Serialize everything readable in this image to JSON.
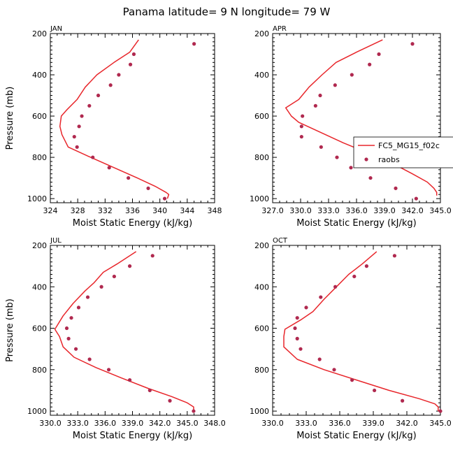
{
  "figure": {
    "title": "Panama  latitude= 9 N longitude= 79 W"
  },
  "colors": {
    "model_line": "#e8262b",
    "obs_marker": "#b0294f",
    "axis": "#000000"
  },
  "legend": {
    "entries": [
      "FC5_MG15_f02c",
      "raobs"
    ],
    "placement": "right, on APR panel"
  },
  "chart_data": [
    {
      "panel": "JAN",
      "type": "line+scatter",
      "title": "JAN",
      "xlabel": "Moist Static Energy (kJ/kg)",
      "ylabel": "Pressure (mb)",
      "xlim": [
        324,
        348
      ],
      "ylim": [
        1020,
        200
      ],
      "y_inverted": true,
      "xticks": [
        324,
        328,
        332,
        336,
        340,
        344,
        348
      ],
      "xtick_labels": [
        "324",
        "328",
        "332",
        "336",
        "340",
        "344",
        "348"
      ],
      "yticks": [
        200,
        400,
        600,
        800,
        1000
      ],
      "ytick_labels": [
        "200",
        "400",
        "600",
        "800",
        "1000"
      ],
      "series": [
        {
          "name": "FC5_MG15_f02c",
          "style": "line",
          "x": [
            336.9,
            335.6,
            333.3,
            330.8,
            329.1,
            327.9,
            326.4,
            325.6,
            325.4,
            325.7,
            326.6,
            329.9,
            333.3,
            336.7,
            339.3,
            340.9,
            341.3,
            341.1
          ],
          "y": [
            230,
            290,
            340,
            400,
            460,
            520,
            570,
            600,
            650,
            690,
            750,
            800,
            850,
            900,
            940,
            970,
            980,
            1000
          ]
        },
        {
          "name": "raobs",
          "style": "marker",
          "x": [
            345.0,
            336.2,
            335.7,
            334.0,
            332.8,
            331.0,
            329.7,
            328.6,
            328.2,
            327.5,
            327.9,
            330.2,
            332.6,
            335.4,
            338.3,
            340.7
          ],
          "y": [
            250,
            300,
            350,
            400,
            450,
            500,
            550,
            600,
            650,
            700,
            750,
            800,
            850,
            900,
            950,
            1000
          ]
        }
      ]
    },
    {
      "panel": "APR",
      "type": "line+scatter",
      "title": "APR",
      "xlabel": "Moist Static Energy (kJ/kg)",
      "ylabel": "Pressure (mb)",
      "xlim": [
        327,
        345
      ],
      "ylim": [
        1020,
        200
      ],
      "y_inverted": true,
      "xticks": [
        327,
        330,
        333,
        336,
        339,
        342,
        345
      ],
      "xtick_labels": [
        "327.0",
        "330.0",
        "333.0",
        "336.0",
        "339.0",
        "342.0",
        "345.0"
      ],
      "yticks": [
        200,
        400,
        600,
        800,
        1000
      ],
      "ytick_labels": [
        "200",
        "400",
        "600",
        "800",
        "1000"
      ],
      "series": [
        {
          "name": "FC5_MG15_f02c",
          "style": "line",
          "x": [
            338.8,
            336.0,
            333.8,
            332.3,
            330.9,
            329.8,
            328.4,
            329.0,
            329.8,
            332.2,
            334.6,
            337.3,
            339.9,
            342.0,
            343.6,
            344.3,
            344.6,
            344.6
          ],
          "y": [
            230,
            290,
            340,
            400,
            460,
            520,
            560,
            600,
            630,
            680,
            730,
            780,
            830,
            880,
            920,
            950,
            970,
            985
          ]
        },
        {
          "name": "raobs",
          "style": "marker",
          "x": [
            342.0,
            338.4,
            337.4,
            335.5,
            333.7,
            332.1,
            331.6,
            330.2,
            330.1,
            330.1,
            332.2,
            333.9,
            335.4,
            337.5,
            340.2,
            342.4
          ],
          "y": [
            250,
            300,
            350,
            400,
            450,
            500,
            550,
            600,
            650,
            700,
            750,
            800,
            850,
            900,
            950,
            1000
          ]
        }
      ]
    },
    {
      "panel": "JUL",
      "type": "line+scatter",
      "title": "JUL",
      "xlabel": "Moist Static Energy (kJ/kg)",
      "ylabel": "Pressure (mb)",
      "xlim": [
        330,
        348
      ],
      "ylim": [
        1020,
        200
      ],
      "y_inverted": true,
      "xticks": [
        330,
        333,
        336,
        339,
        342,
        345,
        348
      ],
      "xtick_labels": [
        "330.0",
        "333.0",
        "336.0",
        "339.0",
        "342.0",
        "345.0",
        "348.0"
      ],
      "yticks": [
        200,
        400,
        600,
        800,
        1000
      ],
      "ytick_labels": [
        "200",
        "400",
        "600",
        "800",
        "1000"
      ],
      "series": [
        {
          "name": "FC5_MG15_f02c",
          "style": "line",
          "x": [
            339.4,
            337.3,
            335.8,
            334.8,
            333.8,
            332.5,
            331.4,
            330.5,
            331.0,
            331.4,
            332.6,
            335.0,
            337.8,
            340.7,
            343.3,
            345.0,
            345.7,
            345.7
          ],
          "y": [
            230,
            290,
            330,
            380,
            420,
            480,
            540,
            605,
            640,
            690,
            740,
            790,
            840,
            890,
            930,
            960,
            980,
            1000
          ]
        },
        {
          "name": "raobs",
          "style": "marker",
          "x": [
            341.2,
            338.7,
            337.0,
            335.6,
            334.1,
            333.1,
            332.3,
            331.8,
            332.0,
            332.8,
            334.3,
            336.4,
            338.7,
            340.9,
            343.1,
            345.7
          ],
          "y": [
            250,
            300,
            350,
            400,
            450,
            500,
            550,
            600,
            650,
            700,
            750,
            800,
            850,
            900,
            950,
            1000
          ]
        }
      ]
    },
    {
      "panel": "OCT",
      "type": "line+scatter",
      "title": "OCT",
      "xlabel": "Moist Static Energy (kJ/kg)",
      "ylabel": "Pressure (mb)",
      "xlim": [
        330,
        345
      ],
      "ylim": [
        1020,
        200
      ],
      "y_inverted": true,
      "xticks": [
        330,
        333,
        336,
        339,
        342,
        345
      ],
      "xtick_labels": [
        "330.0",
        "333.0",
        "336.0",
        "339.0",
        "342.0",
        "345.0"
      ],
      "yticks": [
        200,
        400,
        600,
        800,
        1000
      ],
      "ytick_labels": [
        "200",
        "400",
        "600",
        "800",
        "1000"
      ],
      "series": [
        {
          "name": "FC5_MG15_f02c",
          "style": "line",
          "x": [
            339.3,
            338.0,
            336.8,
            335.7,
            334.6,
            333.6,
            332.5,
            331.1,
            331.0,
            331.0,
            332.2,
            334.6,
            337.5,
            340.4,
            343.1,
            344.5,
            344.8,
            344.8
          ],
          "y": [
            230,
            290,
            340,
            400,
            460,
            520,
            560,
            605,
            640,
            690,
            750,
            800,
            850,
            900,
            940,
            965,
            980,
            1000
          ]
        },
        {
          "name": "raobs",
          "style": "marker",
          "x": [
            340.9,
            338.4,
            337.3,
            335.6,
            334.3,
            333.0,
            332.2,
            332.0,
            332.2,
            332.5,
            334.2,
            335.5,
            337.1,
            339.1,
            341.6,
            345.0
          ],
          "y": [
            250,
            300,
            350,
            400,
            450,
            500,
            550,
            600,
            650,
            700,
            750,
            800,
            850,
            900,
            950,
            1000
          ]
        }
      ]
    }
  ]
}
